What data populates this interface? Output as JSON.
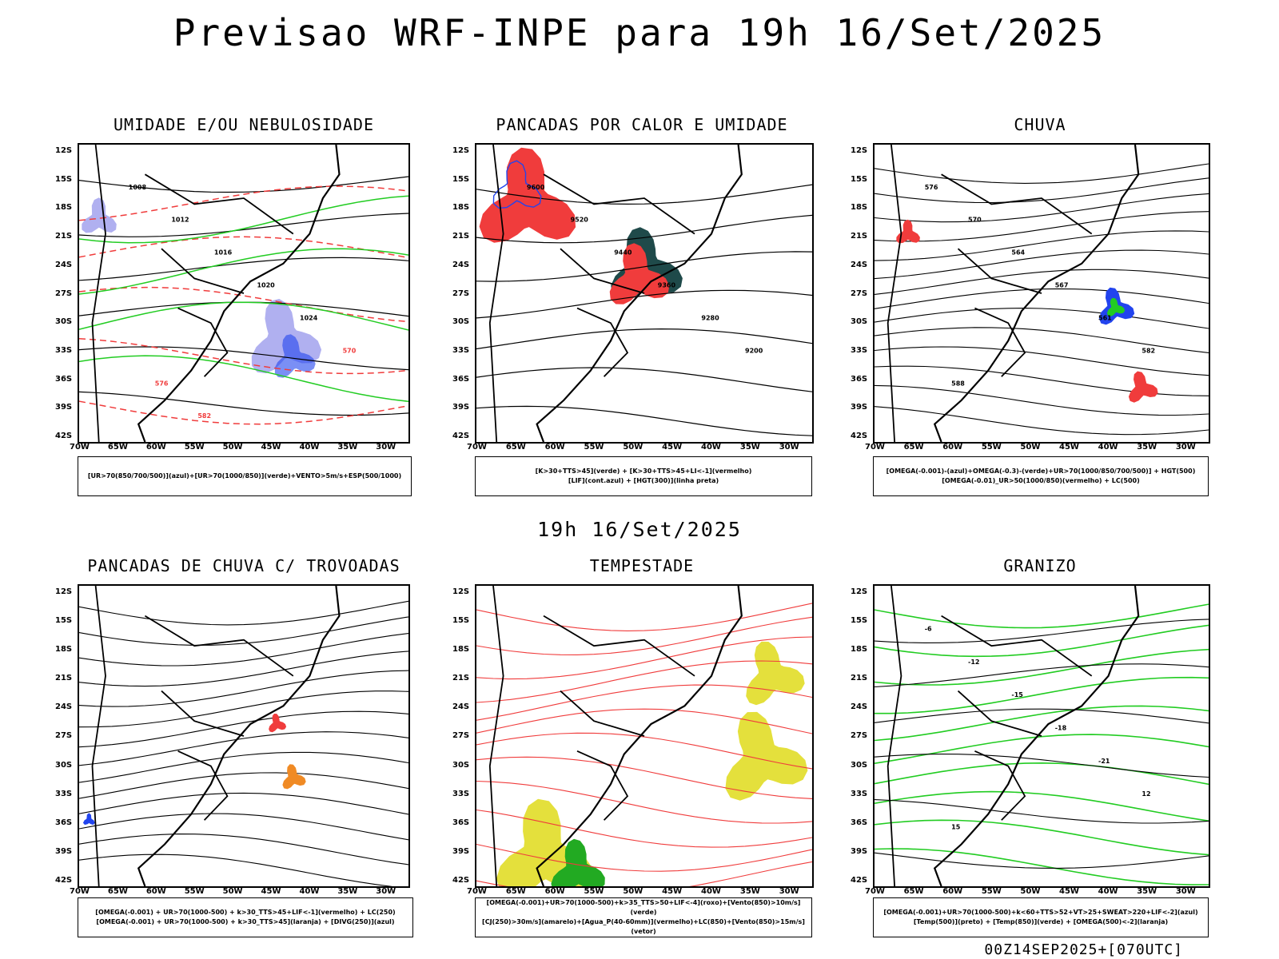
{
  "title": "Previsao WRF-INPE  para 19h 16/Set/2025",
  "mid_time": "19h 16/Set/2025",
  "footer": "00Z14SEP2025+[070UTC]",
  "lat_ticks": [
    "12S",
    "15S",
    "18S",
    "21S",
    "24S",
    "27S",
    "30S",
    "33S",
    "36S",
    "39S",
    "42S"
  ],
  "lon_ticks": [
    "70W",
    "65W",
    "60W",
    "55W",
    "50W",
    "45W",
    "40W",
    "35W",
    "30W"
  ],
  "colors": {
    "red": "#f03c3c",
    "green": "#22cc22",
    "blue": "#2244ee",
    "lavender": "#b0b0f0",
    "darkteal": "#1f4a4a",
    "yellow": "#e4e03c",
    "orange": "#f08a24"
  },
  "panels": [
    {
      "title": "UMIDADE E/OU NEBULOSIDADE",
      "legend": [
        "[UR>70(850/700/500)](azul)+[UR>70(1000/850)](verde)+VENTO>5m/s+ESP(500/1000)"
      ],
      "chart_data": {
        "type": "contour",
        "lines": [
          "1008",
          "1012",
          "1016",
          "1020",
          "1024",
          "570",
          "576",
          "582"
        ]
      }
    },
    {
      "title": "PANCADAS POR CALOR E UMIDADE",
      "legend": [
        "[K>30+TTS>45](verde) + [K>30+TTS>45+LI<-1](vermelho)",
        "[LIF](cont.azul) + [HGT(300)](linha preta)"
      ],
      "chart_data": {
        "type": "contour",
        "lines": [
          "9600",
          "9520",
          "9440",
          "9360",
          "9280",
          "9200"
        ]
      }
    },
    {
      "title": "CHUVA",
      "legend": [
        "[OMEGA(-0.001)-(azul)+OMEGA(-0.3)-(verde)+UR>70(1000/850/700/500)] + HGT(500)",
        "[OMEGA(-0.01)_UR>50(1000/850)(vermelho) + LC(500)"
      ],
      "chart_data": {
        "type": "contour",
        "lines": [
          "576",
          "570",
          "564",
          "567",
          "561",
          "582",
          "588"
        ]
      }
    },
    {
      "title": "PANCADAS DE CHUVA C/ TROVOADAS",
      "legend": [
        "[OMEGA(-0.001) + UR>70(1000-500) + k>30_TTS>45+LIF<-1](vermelho) + LC(250)",
        "[OMEGA(-0.001) + UR>70(1000-500) + k>30_TTS>45](laranja) + [DIVG(250)](azul)"
      ],
      "chart_data": {
        "type": "streamlines"
      }
    },
    {
      "title": "TEMPESTADE",
      "legend": [
        "[OMEGA(-0.001)+UR>70(1000-500)+k>35_TTS>50+LIF<-4](roxo)+[Vento(850)>10m/s](verde)",
        "[CJ(250)>30m/s](amarelo)+[Agua_P(40-60mm)](vermelho)+LC(850)+[Vento(850)>15m/s](vetor)"
      ],
      "chart_data": {
        "type": "streamlines"
      }
    },
    {
      "title": "GRANIZO",
      "legend": [
        "[OMEGA(-0.001)+UR>70(1000-500)+k<60+TTS>52+VT>25+SWEAT>220+LIF<-2](azul)",
        "[Temp(500)](preto) + [Temp(850)](verde) + [OMEGA(500)<-2](laranja)"
      ],
      "chart_data": {
        "type": "contour",
        "lines": [
          "-6",
          "-12",
          "-15",
          "-18",
          "-21",
          "12",
          "15"
        ]
      }
    }
  ]
}
